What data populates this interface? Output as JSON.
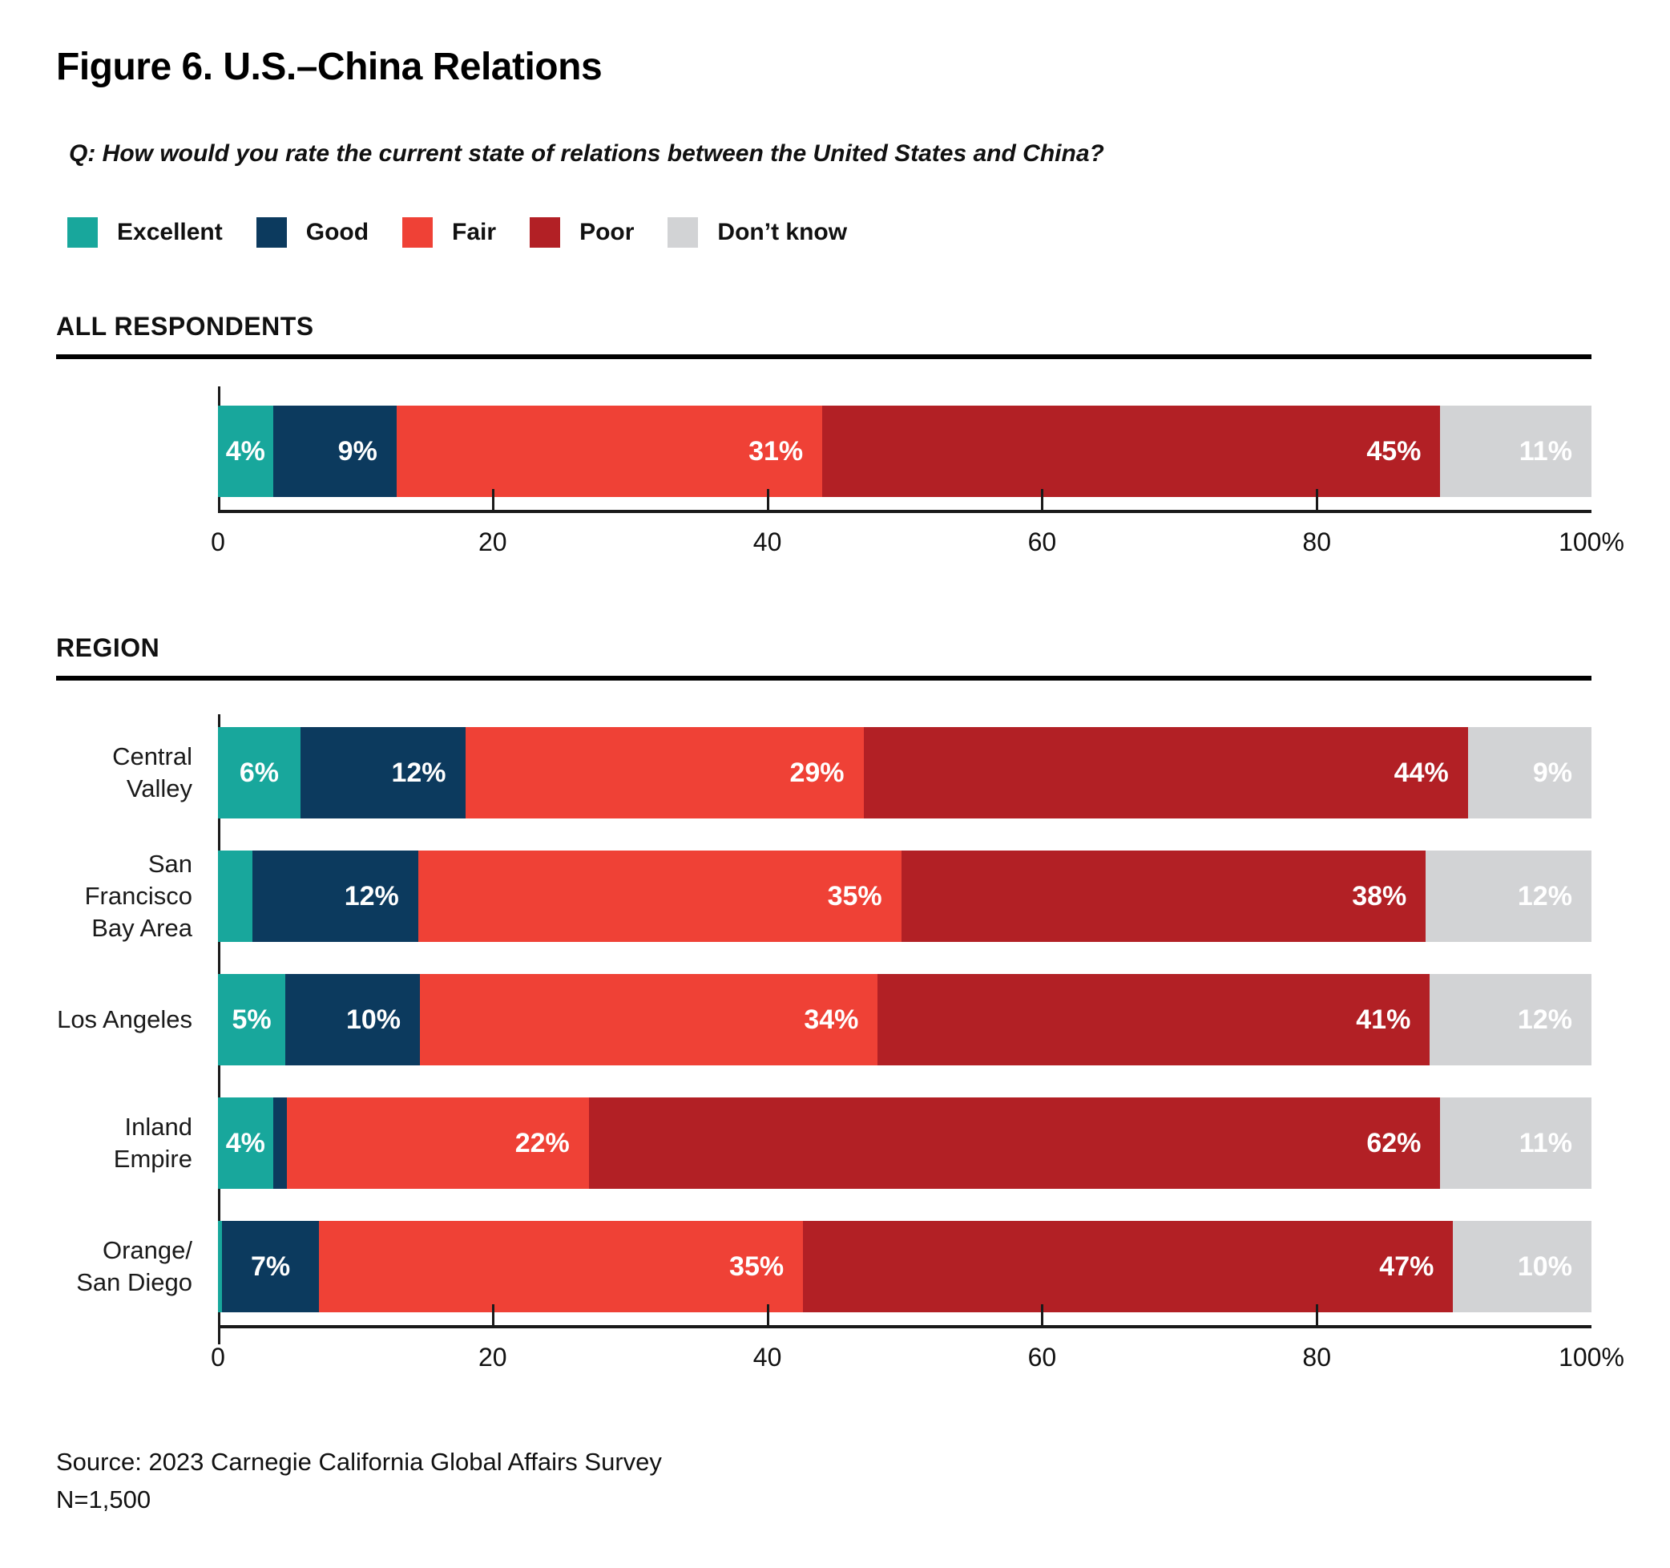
{
  "page": {
    "title": "Figure 6. U.S.–China Relations",
    "question": "Q: How would you rate the current state of relations between the United States and China?",
    "source": "Source: 2023 Carnegie California Global Affairs Survey",
    "sample_size": "N=1,500"
  },
  "chart_data": {
    "type": "bar",
    "variant": "horizontal-stacked-percent",
    "title": "Figure 6. U.S.–China Relations",
    "xlim": [
      0,
      100
    ],
    "xticks": [
      "0",
      "20",
      "40",
      "60",
      "80",
      "100%"
    ],
    "grid": false,
    "legend_position": "top",
    "legend": [
      {
        "key": "excellent",
        "label": "Excellent"
      },
      {
        "key": "good",
        "label": "Good"
      },
      {
        "key": "fair",
        "label": "Fair"
      },
      {
        "key": "poor",
        "label": "Poor"
      },
      {
        "key": "dont_know",
        "label": "Don’t know"
      }
    ],
    "series_colors": {
      "excellent": "#18A79C",
      "good": "#0C3A5E",
      "fair": "#EF4136",
      "poor": "#B22025",
      "dont_know": "#D2D3D5"
    },
    "sections": [
      {
        "heading": "ALL RESPONDENTS",
        "rows": [
          {
            "label_lines": [],
            "segments": [
              {
                "key": "excellent",
                "value": 4,
                "label": "4%"
              },
              {
                "key": "good",
                "value": 9,
                "label": "9%"
              },
              {
                "key": "fair",
                "value": 31,
                "label": "31%"
              },
              {
                "key": "poor",
                "value": 45,
                "label": "45%"
              },
              {
                "key": "dont_know",
                "value": 11,
                "label": "11%"
              }
            ]
          }
        ]
      },
      {
        "heading": "REGION",
        "rows": [
          {
            "label_lines": [
              "Central Valley"
            ],
            "segments": [
              {
                "key": "excellent",
                "value": 6,
                "label": "6%"
              },
              {
                "key": "good",
                "value": 12,
                "label": "12%"
              },
              {
                "key": "fair",
                "value": 29,
                "label": "29%"
              },
              {
                "key": "poor",
                "value": 44,
                "label": "44%"
              },
              {
                "key": "dont_know",
                "value": 9,
                "label": "9%"
              }
            ]
          },
          {
            "label_lines": [
              "San Francisco",
              "Bay Area"
            ],
            "segments": [
              {
                "key": "excellent",
                "value": 2.5,
                "label": null
              },
              {
                "key": "good",
                "value": 12,
                "label": "12%"
              },
              {
                "key": "fair",
                "value": 35,
                "label": "35%"
              },
              {
                "key": "poor",
                "value": 38,
                "label": "38%"
              },
              {
                "key": "dont_know",
                "value": 12,
                "label": "12%"
              }
            ]
          },
          {
            "label_lines": [
              "Los Angeles"
            ],
            "segments": [
              {
                "key": "excellent",
                "value": 5,
                "label": "5%"
              },
              {
                "key": "good",
                "value": 10,
                "label": "10%"
              },
              {
                "key": "fair",
                "value": 34,
                "label": "34%"
              },
              {
                "key": "poor",
                "value": 41,
                "label": "41%"
              },
              {
                "key": "dont_know",
                "value": 12,
                "label": "12%"
              }
            ]
          },
          {
            "label_lines": [
              "Inland Empire"
            ],
            "segments": [
              {
                "key": "excellent",
                "value": 4,
                "label": "4%"
              },
              {
                "key": "good",
                "value": 1,
                "label": null
              },
              {
                "key": "fair",
                "value": 22,
                "label": "22%"
              },
              {
                "key": "poor",
                "value": 62,
                "label": "62%"
              },
              {
                "key": "dont_know",
                "value": 11,
                "label": "11%"
              }
            ]
          },
          {
            "label_lines": [
              "Orange/",
              "San Diego"
            ],
            "segments": [
              {
                "key": "excellent",
                "value": 0.3,
                "label": null
              },
              {
                "key": "good",
                "value": 7,
                "label": "7%"
              },
              {
                "key": "fair",
                "value": 35,
                "label": "35%"
              },
              {
                "key": "poor",
                "value": 47,
                "label": "47%"
              },
              {
                "key": "dont_know",
                "value": 10,
                "label": "10%"
              }
            ]
          }
        ]
      }
    ]
  }
}
